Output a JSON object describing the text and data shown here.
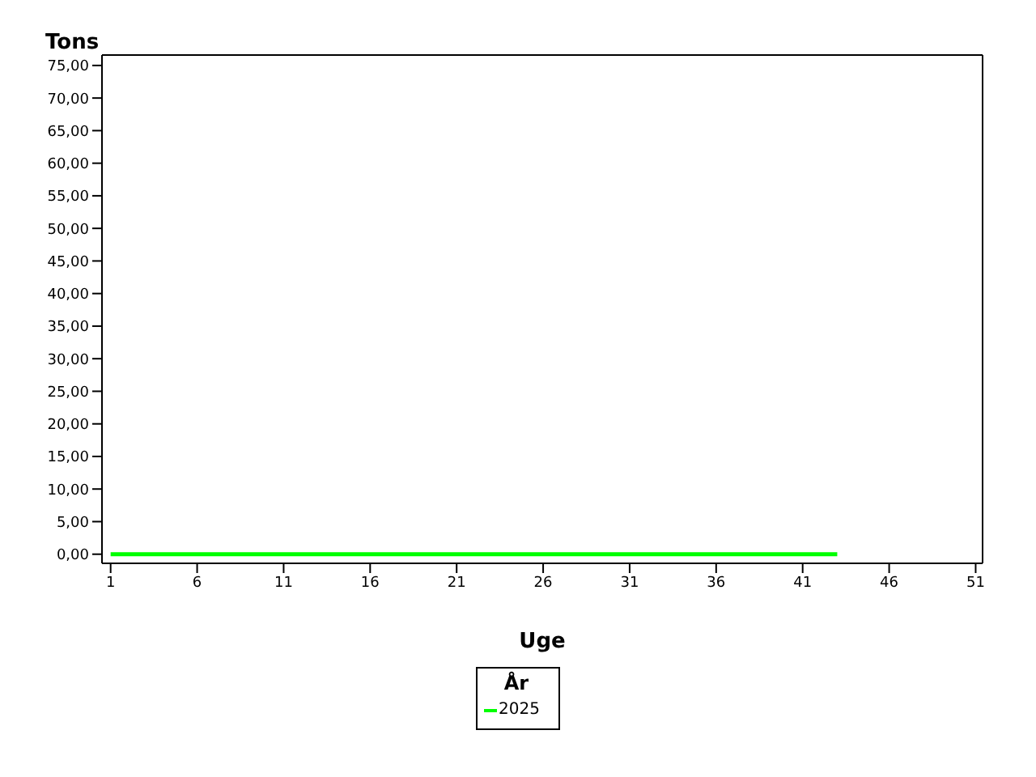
{
  "chart_data": {
    "type": "line",
    "ylabel": "Tons",
    "xlabel": "Uge",
    "legend_title": "År",
    "x": [
      1,
      43
    ],
    "series": [
      {
        "name": "2025",
        "color": "#00ff00",
        "values": [
          0,
          0
        ]
      }
    ],
    "xlim": [
      0.5,
      51.4
    ],
    "xticks": [
      1,
      6,
      11,
      16,
      21,
      26,
      31,
      36,
      41,
      46,
      51
    ],
    "ylim": [
      -1.4,
      76.6
    ],
    "yticks": [
      {
        "value": 0,
        "label": "0,00"
      },
      {
        "value": 5,
        "label": "5,00"
      },
      {
        "value": 10,
        "label": "10,00"
      },
      {
        "value": 15,
        "label": "15,00"
      },
      {
        "value": 20,
        "label": "20,00"
      },
      {
        "value": 25,
        "label": "25,00"
      },
      {
        "value": 30,
        "label": "30,00"
      },
      {
        "value": 35,
        "label": "35,00"
      },
      {
        "value": 40,
        "label": "40,00"
      },
      {
        "value": 45,
        "label": "45,00"
      },
      {
        "value": 50,
        "label": "50,00"
      },
      {
        "value": 55,
        "label": "55,00"
      },
      {
        "value": 60,
        "label": "60,00"
      },
      {
        "value": 65,
        "label": "65,00"
      },
      {
        "value": 70,
        "label": "70,00"
      },
      {
        "value": 75,
        "label": "75,00"
      }
    ],
    "grid": false,
    "legend": "bottom",
    "marker": "none",
    "line_style": "solid"
  }
}
